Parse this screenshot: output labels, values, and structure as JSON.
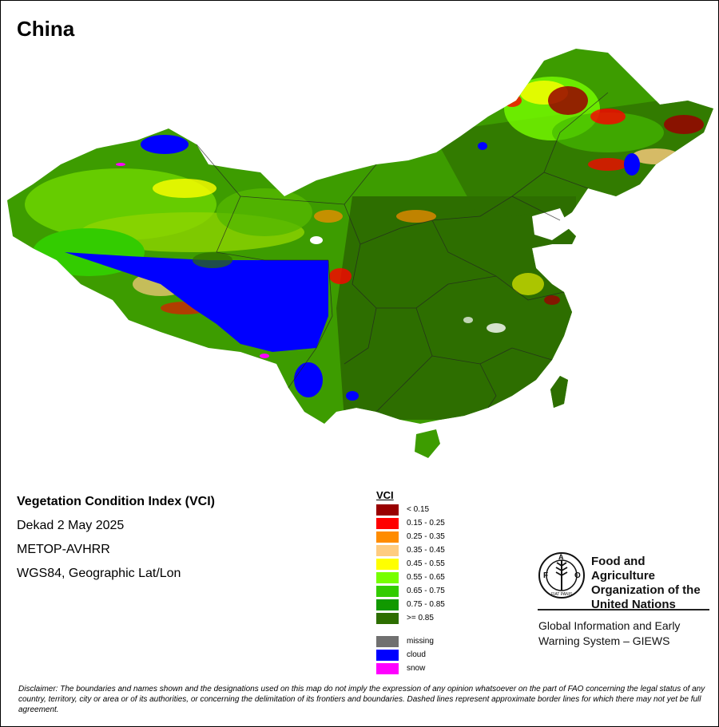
{
  "map": {
    "title": "China",
    "index_title": "Vegetation Condition Index (VCI)",
    "period": "Dekad 2 May 2025",
    "sensor": "METOP-AVHRR",
    "projection": "WGS84, Geographic Lat/Lon"
  },
  "legend": {
    "title": "VCI",
    "classes": [
      {
        "label": "< 0.15",
        "color": "#990000"
      },
      {
        "label": "0.15 - 0.25",
        "color": "#ff0000"
      },
      {
        "label": "0.25 - 0.35",
        "color": "#ff8c00"
      },
      {
        "label": "0.35 - 0.45",
        "color": "#ffcc80"
      },
      {
        "label": "0.45 - 0.55",
        "color": "#ffff00"
      },
      {
        "label": "0.55 - 0.65",
        "color": "#77ff00"
      },
      {
        "label": "0.65 - 0.75",
        "color": "#33cc00"
      },
      {
        "label": "0.75 - 0.85",
        "color": "#119900"
      },
      {
        "label": ">= 0.85",
        "color": "#2d6e00"
      }
    ],
    "special": [
      {
        "label": "missing",
        "color": "#707070"
      },
      {
        "label": "cloud",
        "color": "#0000ff"
      },
      {
        "label": "snow",
        "color": "#ff00ff"
      }
    ]
  },
  "organization": {
    "logo_text": "FAO",
    "logo_motto": "FIAT PANIS",
    "name": "Food and Agriculture Organization of the United Nations",
    "system": "Global Information and Early Warning System – GIEWS"
  },
  "disclaimer": "Disclaimer: The boundaries and names shown and the designations used on this map do not imply the expression of any opinion whatsoever on the part of FAO concerning the legal status of any country, territory, city or area or of its authorities, or concerning the delimitation of its frontiers and boundaries. Dashed lines represent approximate border lines for which there may not yet be full agreement."
}
